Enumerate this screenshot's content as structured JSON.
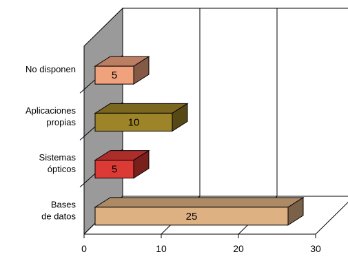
{
  "chart_data": {
    "type": "bar",
    "orientation": "horizontal",
    "three_d": true,
    "categories": [
      "Bases de datos",
      "Sistemas ópticos",
      "Aplicaciones propias",
      "No disponen"
    ],
    "category_label_lines": [
      [
        "Bases",
        "de datos"
      ],
      [
        "Sistemas",
        "ópticos"
      ],
      [
        "Aplicaciones",
        "propias"
      ],
      [
        "No disponen"
      ]
    ],
    "values": [
      25,
      5,
      10,
      5
    ],
    "data_labels": [
      "25",
      "5",
      "10",
      "5"
    ],
    "bar_colors": [
      "#deb183",
      "#dc3a35",
      "#9e8428",
      "#f0a27d"
    ],
    "xlim": [
      0,
      30
    ],
    "x_ticks": [
      "0",
      "10",
      "20",
      "30"
    ],
    "grid": true,
    "legend": "none",
    "title": "",
    "xlabel": "",
    "ylabel": ""
  }
}
